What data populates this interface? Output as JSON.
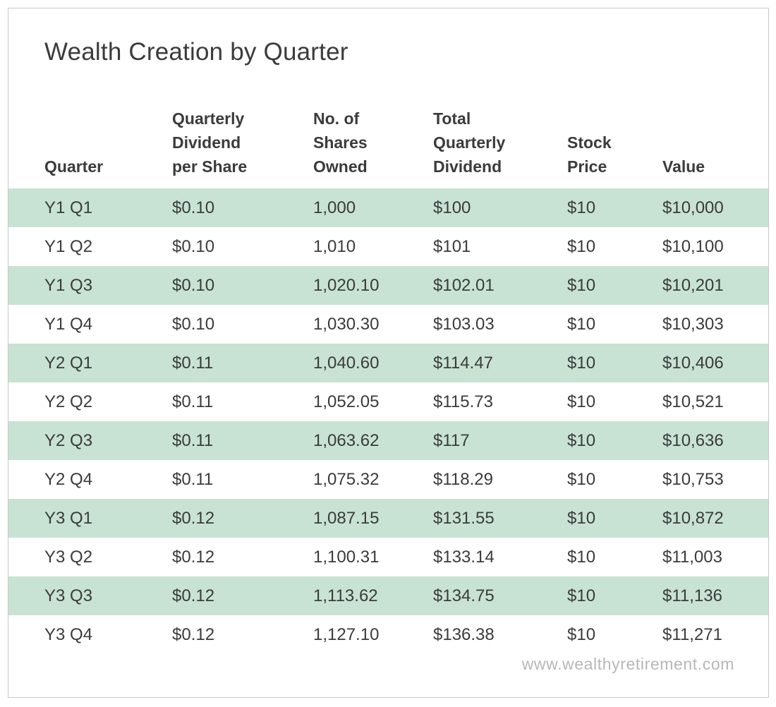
{
  "title": "Wealth Creation by Quarter",
  "footer": {
    "website": "www.wealthyretirement.com"
  },
  "colors": {
    "row_green": "#c8e3d3",
    "text": "#3b3b3b",
    "card_border": "#c8c8c8",
    "footer_text": "#b7b7b7"
  },
  "table": {
    "headers": [
      "Quarter",
      "Quarterly\nDividend\nper Share",
      "No. of\nShares\nOwned",
      "Total\nQuarterly\nDividend",
      "Stock\nPrice",
      "Value"
    ]
  },
  "chart_data": {
    "type": "table",
    "title": "Wealth Creation by Quarter",
    "columns": [
      "Quarter",
      "Quarterly Dividend per Share",
      "No. of Shares Owned",
      "Total Quarterly Dividend",
      "Stock Price",
      "Value"
    ],
    "rows": [
      [
        "Y1 Q1",
        "$0.10",
        "1,000",
        "$100",
        "$10",
        "$10,000"
      ],
      [
        "Y1 Q2",
        "$0.10",
        "1,010",
        "$101",
        "$10",
        "$10,100"
      ],
      [
        "Y1 Q3",
        "$0.10",
        "1,020.10",
        "$102.01",
        "$10",
        "$10,201"
      ],
      [
        "Y1 Q4",
        "$0.10",
        "1,030.30",
        "$103.03",
        "$10",
        "$10,303"
      ],
      [
        "Y2 Q1",
        "$0.11",
        "1,040.60",
        "$114.47",
        "$10",
        "$10,406"
      ],
      [
        "Y2 Q2",
        "$0.11",
        "1,052.05",
        "$115.73",
        "$10",
        "$10,521"
      ],
      [
        "Y2 Q3",
        "$0.11",
        "1,063.62",
        "$117",
        "$10",
        "$10,636"
      ],
      [
        "Y2 Q4",
        "$0.11",
        "1,075.32",
        "$118.29",
        "$10",
        "$10,753"
      ],
      [
        "Y3 Q1",
        "$0.12",
        "1,087.15",
        "$131.55",
        "$10",
        "$10,872"
      ],
      [
        "Y3 Q2",
        "$0.12",
        "1,100.31",
        "$133.14",
        "$10",
        "$11,003"
      ],
      [
        "Y3 Q3",
        "$0.12",
        "1,113.62",
        "$134.75",
        "$10",
        "$11,136"
      ],
      [
        "Y3 Q4",
        "$0.12",
        "1,127.10",
        "$136.38",
        "$10",
        "$11,271"
      ]
    ],
    "layout": {
      "row_striping": "odd rows (1st, 3rd, ...) light green, even rows white",
      "header_alignment": "bottom-left",
      "cell_alignment": "left"
    }
  }
}
